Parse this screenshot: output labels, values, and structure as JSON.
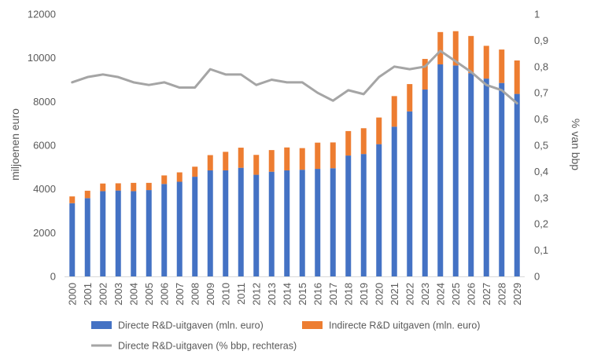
{
  "chart_data": {
    "type": "bar",
    "categories": [
      "2000",
      "2001",
      "2002",
      "2003",
      "2004",
      "2005",
      "2006",
      "2007",
      "2008",
      "2009",
      "2010",
      "2011",
      "2012",
      "2013",
      "2014",
      "2015",
      "2016",
      "2017",
      "2018",
      "2019",
      "2020",
      "2021",
      "2022",
      "2023",
      "2024",
      "2025",
      "2026",
      "2027",
      "2028",
      "2029"
    ],
    "series": [
      {
        "name": "Directe R&D-uitgaven (mln. euro)",
        "type": "bar",
        "stack": "total",
        "axis": "left",
        "color": "#4472C4",
        "values": [
          3350,
          3580,
          3900,
          3930,
          3900,
          3950,
          4230,
          4330,
          4560,
          4850,
          4850,
          4970,
          4650,
          4790,
          4850,
          4880,
          4920,
          4950,
          5530,
          5600,
          6050,
          6850,
          7550,
          8550,
          9700,
          9650,
          9300,
          9050,
          8850,
          8350
        ]
      },
      {
        "name": "Indirecte R&D uitgaven (mln. euro)",
        "type": "bar",
        "stack": "total",
        "axis": "left",
        "color": "#ED7D31",
        "values": [
          310,
          340,
          350,
          330,
          380,
          330,
          390,
          430,
          460,
          700,
          850,
          920,
          910,
          990,
          1050,
          990,
          1200,
          1180,
          1120,
          1180,
          1220,
          1400,
          1250,
          1400,
          1480,
          1570,
          1700,
          1500,
          1530,
          1530
        ]
      },
      {
        "name": "Directe R&D-uitgaven (% bbp, rechteras)",
        "type": "line",
        "axis": "right",
        "color": "#A5A5A5",
        "values": [
          0.74,
          0.76,
          0.77,
          0.76,
          0.74,
          0.73,
          0.74,
          0.72,
          0.72,
          0.79,
          0.77,
          0.77,
          0.73,
          0.75,
          0.74,
          0.74,
          0.7,
          0.67,
          0.71,
          0.695,
          0.76,
          0.8,
          0.79,
          0.8,
          0.86,
          0.82,
          0.78,
          0.73,
          0.71,
          0.66
        ]
      }
    ],
    "ylabel": "miljoenen euro",
    "y2label": "% van bbp",
    "xlabel": "",
    "title": "",
    "ylim": [
      0,
      12000
    ],
    "y2lim": [
      0,
      1
    ],
    "yticks": [
      "0",
      "2000",
      "4000",
      "6000",
      "8000",
      "10000",
      "12000"
    ],
    "y2ticks": [
      "0",
      "0,1",
      "0,2",
      "0,3",
      "0,4",
      "0,5",
      "0,6",
      "0,7",
      "0,8",
      "0,9",
      "1"
    ],
    "grid": false,
    "legend_position": "bottom"
  }
}
